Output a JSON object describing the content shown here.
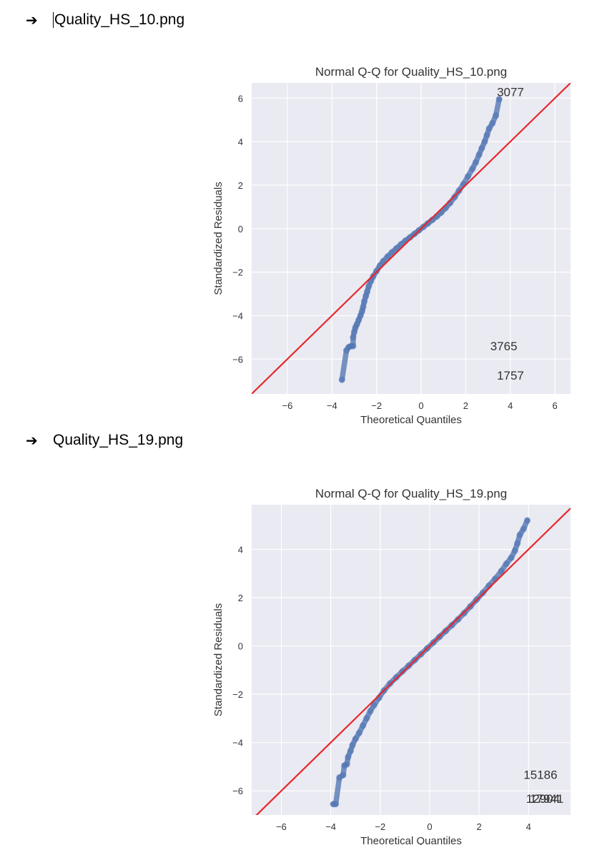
{
  "items": [
    {
      "caption": "Quality_HS_10.png"
    },
    {
      "caption": "Quality_HS_19.png"
    }
  ],
  "bullet_glyph": "➔",
  "colors": {
    "background": "#EAEAF2",
    "grid": "#FFFFFF",
    "points": "#4C72B0",
    "line": "#E8272B",
    "text": "#333333"
  },
  "chart_data": [
    {
      "type": "scatter",
      "title": "Normal Q-Q for Quality_HS_10.png",
      "xlabel": "Theoretical Quantiles",
      "ylabel": "Standardized Residuals",
      "xlim": [
        -7.6,
        6.7
      ],
      "ylim": [
        -7.6,
        6.7
      ],
      "xticks": [
        -6,
        -4,
        -2,
        0,
        2,
        4,
        6
      ],
      "yticks": [
        -6,
        -4,
        -2,
        0,
        2,
        4,
        6
      ],
      "tick_labels": {
        "x": [
          "−6",
          "−4",
          "−2",
          "0",
          "2",
          "4",
          "6"
        ],
        "y": [
          "−6",
          "−4",
          "−2",
          "0",
          "2",
          "4",
          "6"
        ]
      },
      "grid": true,
      "reference_line": {
        "slope": 1,
        "intercept": 0
      },
      "points": [
        [
          -3.55,
          -6.95
        ],
        [
          -3.35,
          -5.6
        ],
        [
          -3.25,
          -5.45
        ],
        [
          -3.15,
          -5.4
        ],
        [
          -3.05,
          -5.4
        ],
        [
          -3.05,
          -5.0
        ],
        [
          -3.0,
          -4.75
        ],
        [
          -2.95,
          -4.55
        ],
        [
          -2.88,
          -4.4
        ],
        [
          -2.8,
          -4.2
        ],
        [
          -2.72,
          -4.0
        ],
        [
          -2.65,
          -3.8
        ],
        [
          -2.6,
          -3.6
        ],
        [
          -2.55,
          -3.35
        ],
        [
          -2.48,
          -3.1
        ],
        [
          -2.42,
          -2.9
        ],
        [
          -2.35,
          -2.65
        ],
        [
          -2.25,
          -2.4
        ],
        [
          -2.15,
          -2.2
        ],
        [
          -2.0,
          -1.95
        ],
        [
          -1.85,
          -1.7
        ],
        [
          -1.7,
          -1.5
        ],
        [
          -1.5,
          -1.28
        ],
        [
          -1.3,
          -1.08
        ],
        [
          -1.1,
          -0.9
        ],
        [
          -0.9,
          -0.72
        ],
        [
          -0.7,
          -0.55
        ],
        [
          -0.5,
          -0.4
        ],
        [
          -0.3,
          -0.24
        ],
        [
          -0.1,
          -0.08
        ],
        [
          0.1,
          0.08
        ],
        [
          0.3,
          0.24
        ],
        [
          0.5,
          0.4
        ],
        [
          0.7,
          0.56
        ],
        [
          0.9,
          0.74
        ],
        [
          1.1,
          0.95
        ],
        [
          1.3,
          1.18
        ],
        [
          1.5,
          1.45
        ],
        [
          1.7,
          1.75
        ],
        [
          1.9,
          2.05
        ],
        [
          2.1,
          2.4
        ],
        [
          2.3,
          2.75
        ],
        [
          2.45,
          3.05
        ],
        [
          2.6,
          3.4
        ],
        [
          2.72,
          3.7
        ],
        [
          2.85,
          4.0
        ],
        [
          2.95,
          4.3
        ],
        [
          3.05,
          4.6
        ],
        [
          3.2,
          4.85
        ],
        [
          3.35,
          5.2
        ],
        [
          3.5,
          5.95
        ]
      ],
      "annotations": [
        {
          "text": "3077",
          "x": 3.4,
          "y": 6.1
        },
        {
          "text": "3765",
          "x": 3.1,
          "y": -5.6
        },
        {
          "text": "1757",
          "x": 3.4,
          "y": -6.95
        }
      ]
    },
    {
      "type": "scatter",
      "title": "Normal Q-Q for Quality_HS_19.png",
      "xlabel": "Theoretical Quantiles",
      "ylabel": "Standardized Residuals",
      "xlim": [
        -7.2,
        5.7
      ],
      "ylim": [
        -7.0,
        5.85
      ],
      "xticks": [
        -6,
        -4,
        -2,
        0,
        2,
        4
      ],
      "yticks": [
        -6,
        -4,
        -2,
        0,
        2,
        4
      ],
      "tick_labels": {
        "x": [
          "−6",
          "−4",
          "−2",
          "0",
          "2",
          "4"
        ],
        "y": [
          "−6",
          "−4",
          "−2",
          "0",
          "2",
          "4"
        ]
      },
      "grid": true,
      "reference_line": {
        "slope": 1,
        "intercept": 0
      },
      "points": [
        [
          -3.9,
          -6.55
        ],
        [
          -3.8,
          -6.55
        ],
        [
          -3.65,
          -5.45
        ],
        [
          -3.5,
          -5.35
        ],
        [
          -3.45,
          -4.95
        ],
        [
          -3.35,
          -4.9
        ],
        [
          -3.3,
          -4.6
        ],
        [
          -3.2,
          -4.35
        ],
        [
          -3.12,
          -4.1
        ],
        [
          -3.0,
          -3.85
        ],
        [
          -2.85,
          -3.6
        ],
        [
          -2.7,
          -3.3
        ],
        [
          -2.55,
          -3.0
        ],
        [
          -2.4,
          -2.7
        ],
        [
          -2.25,
          -2.45
        ],
        [
          -2.05,
          -2.15
        ],
        [
          -1.85,
          -1.85
        ],
        [
          -1.6,
          -1.55
        ],
        [
          -1.35,
          -1.3
        ],
        [
          -1.1,
          -1.05
        ],
        [
          -0.85,
          -0.82
        ],
        [
          -0.6,
          -0.58
        ],
        [
          -0.35,
          -0.34
        ],
        [
          -0.1,
          -0.1
        ],
        [
          0.15,
          0.14
        ],
        [
          0.4,
          0.38
        ],
        [
          0.65,
          0.62
        ],
        [
          0.9,
          0.86
        ],
        [
          1.15,
          1.1
        ],
        [
          1.4,
          1.36
        ],
        [
          1.65,
          1.64
        ],
        [
          1.9,
          1.92
        ],
        [
          2.15,
          2.2
        ],
        [
          2.4,
          2.5
        ],
        [
          2.65,
          2.78
        ],
        [
          2.9,
          3.1
        ],
        [
          3.1,
          3.4
        ],
        [
          3.3,
          3.65
        ],
        [
          3.45,
          3.95
        ],
        [
          3.55,
          4.25
        ],
        [
          3.65,
          4.6
        ],
        [
          3.8,
          4.85
        ],
        [
          3.95,
          5.2
        ]
      ],
      "annotations": [
        {
          "text": "15186",
          "x": 3.8,
          "y": -5.5
        },
        {
          "text": "12904",
          "x": 3.9,
          "y": -6.5
        },
        {
          "text": "17941",
          "x": 4.05,
          "y": -6.5
        }
      ]
    }
  ]
}
